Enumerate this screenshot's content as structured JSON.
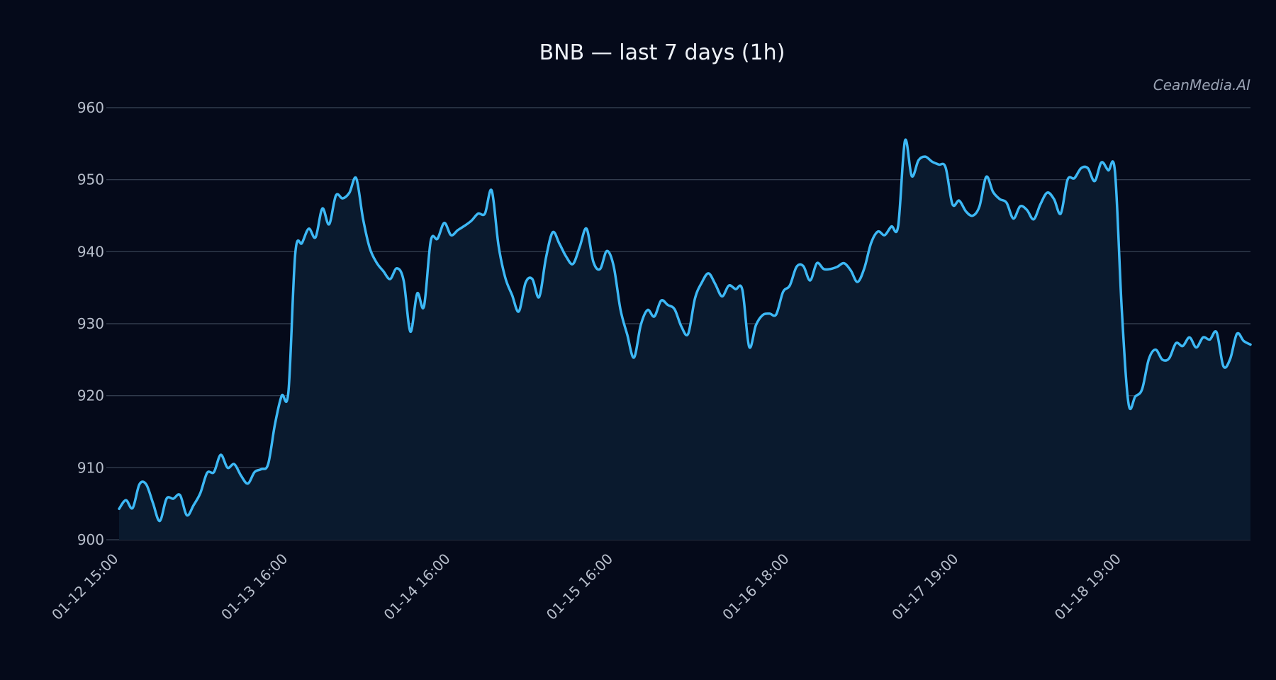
{
  "chart_data": {
    "type": "area",
    "title": "BNB — last 7 days (1h)",
    "watermark": "CeanMedia.AI",
    "xlabel": "",
    "ylabel": "",
    "ylim": [
      900,
      960
    ],
    "yticks": [
      900,
      910,
      920,
      930,
      940,
      950,
      960
    ],
    "xticks": [
      {
        "index": 0,
        "label": "01-12 15:00"
      },
      {
        "index": 25,
        "label": "01-13 16:00"
      },
      {
        "index": 49,
        "label": "01-14 16:00"
      },
      {
        "index": 73,
        "label": "01-15 16:00"
      },
      {
        "index": 99,
        "label": "01-16 18:00"
      },
      {
        "index": 124,
        "label": "01-17 19:00"
      },
      {
        "index": 148,
        "label": "01-18 19:00"
      }
    ],
    "grid": true,
    "legend": "none",
    "colors": {
      "background": "#050a1a",
      "line": "#3db8f5",
      "fill": "#0a1a2e",
      "grid": "#3b4658",
      "text": "#b8bfcc",
      "title": "#eef2f8"
    },
    "series": [
      {
        "name": "",
        "values": [
          904.3,
          905.5,
          904.4,
          907.7,
          907.7,
          905.1,
          902.6,
          905.7,
          905.7,
          906.2,
          903.4,
          904.8,
          906.5,
          909.3,
          909.4,
          911.8,
          910.0,
          910.5,
          908.9,
          907.8,
          909.4,
          909.8,
          910.5,
          916.0,
          920.0,
          920.6,
          939.7,
          941.2,
          943.2,
          942.0,
          946.0,
          943.8,
          947.8,
          947.4,
          948.2,
          950.2,
          944.6,
          940.5,
          938.5,
          937.3,
          936.2,
          937.7,
          936.0,
          928.9,
          934.2,
          932.4,
          941.5,
          941.8,
          944.0,
          942.3,
          943.0,
          943.6,
          944.3,
          945.3,
          945.3,
          948.5,
          940.9,
          936.4,
          934.0,
          931.7,
          935.7,
          936.2,
          933.7,
          939.1,
          942.7,
          941.1,
          939.3,
          938.3,
          940.7,
          943.2,
          938.6,
          937.6,
          940.1,
          938.0,
          932.0,
          928.5,
          925.3,
          929.8,
          931.9,
          931.0,
          933.2,
          932.6,
          932.0,
          929.6,
          928.6,
          933.5,
          935.7,
          937.0,
          935.5,
          933.8,
          935.3,
          934.8,
          934.7,
          926.8,
          929.8,
          931.2,
          931.4,
          931.3,
          934.4,
          935.3,
          937.9,
          938.0,
          936.0,
          938.4,
          937.6,
          937.6,
          937.9,
          938.4,
          937.4,
          935.8,
          937.7,
          941.2,
          942.8,
          942.3,
          943.5,
          943.6,
          955.4,
          950.5,
          952.7,
          953.2,
          952.5,
          952.1,
          951.7,
          946.6,
          947.1,
          945.6,
          945.0,
          946.3,
          950.4,
          948.3,
          947.3,
          946.8,
          944.6,
          946.3,
          945.8,
          944.5,
          946.6,
          948.2,
          947.3,
          945.3,
          950.0,
          950.2,
          951.6,
          951.6,
          949.8,
          952.4,
          951.3,
          951.1,
          932.0,
          918.9,
          919.9,
          920.9,
          925.1,
          926.4,
          925.0,
          925.2,
          927.3,
          926.9,
          928.1,
          926.7,
          928.1,
          927.8,
          928.8,
          924.1,
          925.1,
          928.6,
          927.6,
          927.1
        ]
      }
    ]
  }
}
